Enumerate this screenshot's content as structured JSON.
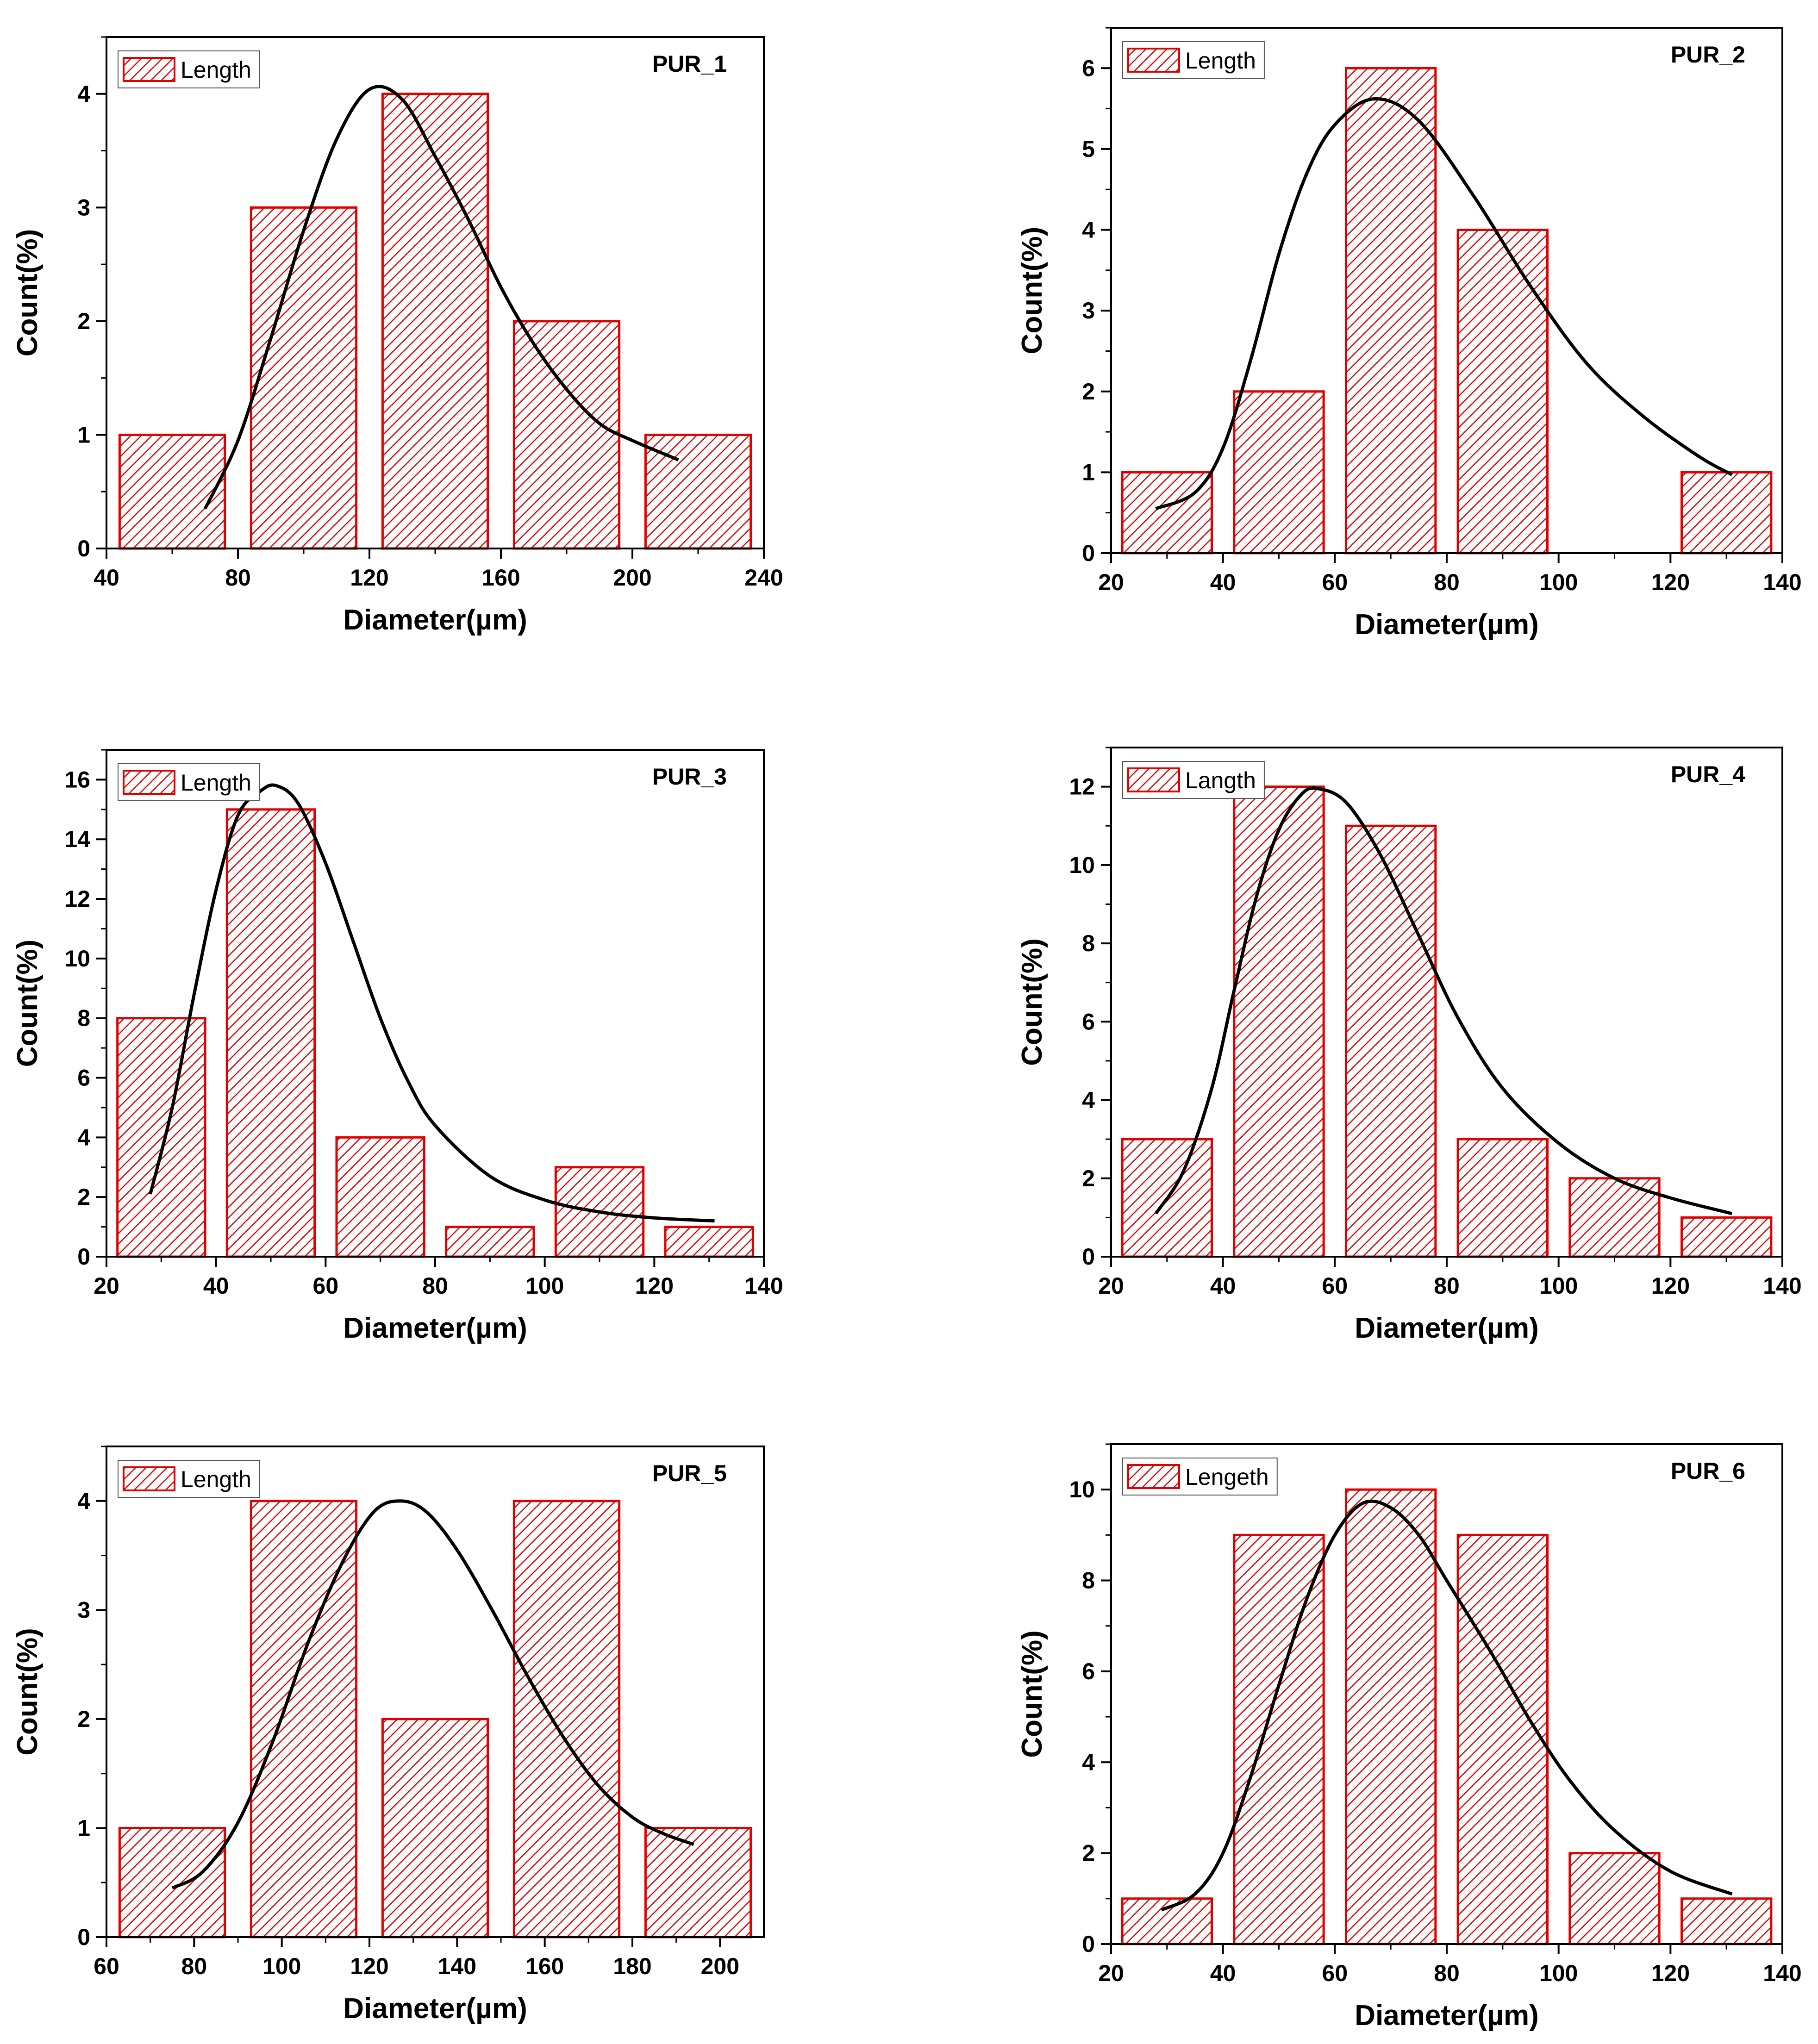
{
  "colors": {
    "bar_edge": "#e00000",
    "bar_hatch": "#e00000",
    "curve": "#000000",
    "axes": "#000000"
  },
  "chart_data": [
    {
      "type": "bar",
      "title": "PUR_1",
      "legend": "Length",
      "legend_position": "top-left",
      "xlabel": "Diameter(µm)",
      "ylabel": "Count(%)",
      "xlim": [
        40,
        240
      ],
      "ylim": [
        0,
        4.5
      ],
      "xticks": [
        40,
        80,
        120,
        160,
        200,
        240
      ],
      "yticks": [
        0,
        1,
        2,
        3,
        4
      ],
      "bars": [
        {
          "from": 44,
          "to": 76,
          "value": 1
        },
        {
          "from": 84,
          "to": 116,
          "value": 3
        },
        {
          "from": 124,
          "to": 156,
          "value": 4
        },
        {
          "from": 164,
          "to": 196,
          "value": 2
        },
        {
          "from": 204,
          "to": 236,
          "value": 1
        }
      ],
      "fit_curve": [
        [
          70,
          0.35
        ],
        [
          80,
          0.95
        ],
        [
          90,
          1.85
        ],
        [
          100,
          2.8
        ],
        [
          110,
          3.6
        ],
        [
          120,
          4.04
        ],
        [
          130,
          3.95
        ],
        [
          140,
          3.45
        ],
        [
          150,
          2.9
        ],
        [
          160,
          2.3
        ],
        [
          170,
          1.8
        ],
        [
          180,
          1.4
        ],
        [
          190,
          1.1
        ],
        [
          200,
          0.95
        ],
        [
          214,
          0.78
        ]
      ]
    },
    {
      "type": "bar",
      "title": "PUR_2",
      "legend": "Length",
      "legend_position": "top-left",
      "xlabel": "Diameter(µm)",
      "ylabel": "Count(%)",
      "xlim": [
        20,
        140
      ],
      "ylim": [
        0,
        6.5
      ],
      "xticks": [
        20,
        40,
        60,
        80,
        100,
        120,
        140
      ],
      "yticks": [
        0,
        1,
        2,
        3,
        4,
        5,
        6
      ],
      "bars": [
        {
          "from": 22,
          "to": 38,
          "value": 1
        },
        {
          "from": 42,
          "to": 58,
          "value": 2
        },
        {
          "from": 62,
          "to": 78,
          "value": 6
        },
        {
          "from": 82,
          "to": 98,
          "value": 4
        },
        {
          "from": 122,
          "to": 138,
          "value": 1
        }
      ],
      "fit_curve": [
        [
          28,
          0.55
        ],
        [
          35,
          0.75
        ],
        [
          40,
          1.3
        ],
        [
          45,
          2.4
        ],
        [
          50,
          3.7
        ],
        [
          55,
          4.7
        ],
        [
          60,
          5.3
        ],
        [
          67,
          5.62
        ],
        [
          75,
          5.35
        ],
        [
          85,
          4.4
        ],
        [
          95,
          3.3
        ],
        [
          105,
          2.35
        ],
        [
          115,
          1.7
        ],
        [
          125,
          1.2
        ],
        [
          131,
          0.97
        ]
      ]
    },
    {
      "type": "bar",
      "title": "PUR_3",
      "legend": "Length",
      "legend_position": "top-left",
      "xlabel": "Diameter(µm)",
      "ylabel": "Count(%)",
      "xlim": [
        20,
        140
      ],
      "ylim": [
        0,
        17
      ],
      "xticks": [
        20,
        40,
        60,
        80,
        100,
        120,
        140
      ],
      "yticks": [
        0,
        2,
        4,
        6,
        8,
        10,
        12,
        14,
        16
      ],
      "bars": [
        {
          "from": 22,
          "to": 38,
          "value": 8
        },
        {
          "from": 42,
          "to": 58,
          "value": 15
        },
        {
          "from": 62,
          "to": 78,
          "value": 4
        },
        {
          "from": 82,
          "to": 98,
          "value": 1
        },
        {
          "from": 102,
          "to": 118,
          "value": 3
        },
        {
          "from": 122,
          "to": 138,
          "value": 1
        }
      ],
      "fit_curve": [
        [
          28,
          2.1
        ],
        [
          32,
          5.0
        ],
        [
          36,
          8.8
        ],
        [
          40,
          12.3
        ],
        [
          44,
          14.8
        ],
        [
          48,
          15.6
        ],
        [
          51,
          15.8
        ],
        [
          55,
          15.2
        ],
        [
          60,
          13.2
        ],
        [
          65,
          10.6
        ],
        [
          70,
          8.0
        ],
        [
          75,
          5.9
        ],
        [
          80,
          4.4
        ],
        [
          90,
          2.7
        ],
        [
          100,
          1.9
        ],
        [
          110,
          1.5
        ],
        [
          120,
          1.3
        ],
        [
          131,
          1.2
        ]
      ]
    },
    {
      "type": "bar",
      "title": "PUR_4",
      "legend": "Langth",
      "legend_position": "top-left",
      "xlabel": "Diameter(µm)",
      "ylabel": "Count(%)",
      "xlim": [
        20,
        140
      ],
      "ylim": [
        0,
        13
      ],
      "xticks": [
        20,
        40,
        60,
        80,
        100,
        120,
        140
      ],
      "yticks": [
        0,
        2,
        4,
        6,
        8,
        10,
        12
      ],
      "bars": [
        {
          "from": 22,
          "to": 38,
          "value": 3
        },
        {
          "from": 42,
          "to": 58,
          "value": 12
        },
        {
          "from": 62,
          "to": 78,
          "value": 11
        },
        {
          "from": 82,
          "to": 98,
          "value": 3
        },
        {
          "from": 102,
          "to": 118,
          "value": 2
        },
        {
          "from": 122,
          "to": 138,
          "value": 1
        }
      ],
      "fit_curve": [
        [
          28,
          1.1
        ],
        [
          33,
          2.2
        ],
        [
          38,
          4.3
        ],
        [
          42,
          6.8
        ],
        [
          46,
          9.2
        ],
        [
          50,
          10.9
        ],
        [
          54,
          11.8
        ],
        [
          57,
          11.95
        ],
        [
          62,
          11.6
        ],
        [
          68,
          10.3
        ],
        [
          75,
          8.2
        ],
        [
          82,
          6.1
        ],
        [
          90,
          4.3
        ],
        [
          100,
          2.9
        ],
        [
          110,
          2.0
        ],
        [
          120,
          1.5
        ],
        [
          131,
          1.1
        ]
      ]
    },
    {
      "type": "bar",
      "title": "PUR_5",
      "legend": "Length",
      "legend_position": "top-left",
      "xlabel": "Diameter(µm)",
      "ylabel": "Count(%)",
      "xlim": [
        60,
        210
      ],
      "ylim": [
        0,
        4.5
      ],
      "xticks": [
        60,
        80,
        100,
        120,
        140,
        160,
        180,
        200
      ],
      "yticks": [
        0,
        1,
        2,
        3,
        4
      ],
      "bars": [
        {
          "from": 63,
          "to": 87,
          "value": 1
        },
        {
          "from": 93,
          "to": 117,
          "value": 4
        },
        {
          "from": 123,
          "to": 147,
          "value": 2
        },
        {
          "from": 153,
          "to": 177,
          "value": 4
        },
        {
          "from": 183,
          "to": 207,
          "value": 1
        }
      ],
      "fit_curve": [
        [
          75,
          0.45
        ],
        [
          82,
          0.6
        ],
        [
          90,
          1.05
        ],
        [
          98,
          1.8
        ],
        [
          106,
          2.7
        ],
        [
          114,
          3.45
        ],
        [
          121,
          3.9
        ],
        [
          127,
          4.0
        ],
        [
          133,
          3.9
        ],
        [
          140,
          3.55
        ],
        [
          148,
          3.0
        ],
        [
          156,
          2.4
        ],
        [
          164,
          1.85
        ],
        [
          172,
          1.4
        ],
        [
          180,
          1.1
        ],
        [
          187,
          0.95
        ],
        [
          194,
          0.85
        ]
      ]
    },
    {
      "type": "bar",
      "title": "PUR_6",
      "legend": "Lengeth",
      "legend_position": "top-left",
      "xlabel": "Diameter(µm)",
      "ylabel": "Count(%)",
      "xlim": [
        20,
        140
      ],
      "ylim": [
        0,
        11
      ],
      "xticks": [
        20,
        40,
        60,
        80,
        100,
        120,
        140
      ],
      "yticks": [
        0,
        2,
        4,
        6,
        8,
        10
      ],
      "bars": [
        {
          "from": 22,
          "to": 38,
          "value": 1
        },
        {
          "from": 42,
          "to": 58,
          "value": 9
        },
        {
          "from": 62,
          "to": 78,
          "value": 10
        },
        {
          "from": 82,
          "to": 98,
          "value": 9
        },
        {
          "from": 102,
          "to": 118,
          "value": 2
        },
        {
          "from": 122,
          "to": 138,
          "value": 1
        }
      ],
      "fit_curve": [
        [
          29,
          0.75
        ],
        [
          35,
          1.1
        ],
        [
          40,
          2.0
        ],
        [
          45,
          3.7
        ],
        [
          50,
          5.7
        ],
        [
          55,
          7.6
        ],
        [
          60,
          9.0
        ],
        [
          65,
          9.7
        ],
        [
          70,
          9.6
        ],
        [
          75,
          9.0
        ],
        [
          80,
          8.0
        ],
        [
          88,
          6.4
        ],
        [
          95,
          4.9
        ],
        [
          102,
          3.6
        ],
        [
          110,
          2.5
        ],
        [
          120,
          1.6
        ],
        [
          131,
          1.1
        ]
      ]
    }
  ]
}
